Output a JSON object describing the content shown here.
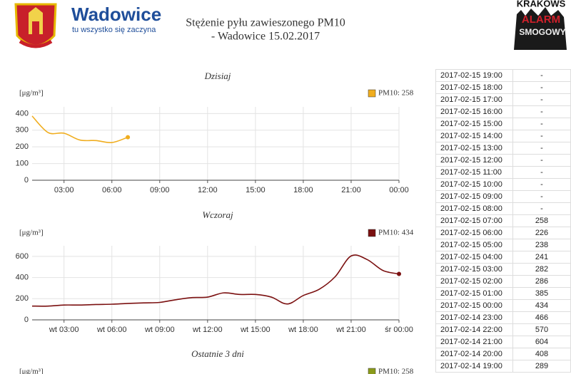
{
  "header": {
    "brand": "Wadowice",
    "tagline": "tu wszystko się zaczyna",
    "title_line1": "Stężenie pyłu zawieszonego PM10",
    "title_line2": "- Wadowice 15.02.2017",
    "logo_right": [
      "KRAKOWS",
      "ALARM",
      "SMOGOWY"
    ]
  },
  "chart_data": [
    {
      "type": "line",
      "title": "Dzisiaj",
      "y_label": "[μg/m³]",
      "x": [
        1,
        2,
        3,
        4,
        5,
        6,
        7
      ],
      "series": [
        {
          "name": "PM10: 258",
          "color": "#f0ad1e",
          "values": [
            385,
            286,
            282,
            241,
            238,
            226,
            258
          ]
        }
      ],
      "xlim": [
        1,
        24
      ],
      "xticks": [
        {
          "value": 3,
          "label": "03:00"
        },
        {
          "value": 6,
          "label": "06:00"
        },
        {
          "value": 9,
          "label": "09:00"
        },
        {
          "value": 12,
          "label": "12:00"
        },
        {
          "value": 15,
          "label": "15:00"
        },
        {
          "value": 18,
          "label": "18:00"
        },
        {
          "value": 21,
          "label": "21:00"
        },
        {
          "value": 24,
          "label": "00:00"
        }
      ],
      "ylim": [
        0,
        440
      ],
      "yticks": [
        0,
        100,
        200,
        300,
        400
      ],
      "grid": true
    },
    {
      "type": "line",
      "title": "Wczoraj",
      "y_label": "[μg/m³]",
      "x": [
        1,
        2,
        3,
        4,
        5,
        6,
        7,
        8,
        9,
        10,
        11,
        12,
        13,
        14,
        15,
        16,
        17,
        18,
        19,
        20,
        21,
        22,
        23,
        24
      ],
      "series": [
        {
          "name": "PM10: 434",
          "color": "#7b1010",
          "values": [
            130,
            130,
            140,
            140,
            145,
            148,
            155,
            160,
            165,
            190,
            210,
            215,
            255,
            240,
            240,
            215,
            150,
            230,
            289,
            408,
            604,
            570,
            466,
            434
          ]
        }
      ],
      "xlim": [
        1,
        24
      ],
      "xticks": [
        {
          "value": 3,
          "label": "wt 03:00"
        },
        {
          "value": 6,
          "label": "wt 06:00"
        },
        {
          "value": 9,
          "label": "wt 09:00"
        },
        {
          "value": 12,
          "label": "wt 12:00"
        },
        {
          "value": 15,
          "label": "wt 15:00"
        },
        {
          "value": 18,
          "label": "wt 18:00"
        },
        {
          "value": 21,
          "label": "wt 21:00"
        },
        {
          "value": 24,
          "label": "śr 00:00"
        }
      ],
      "ylim": [
        0,
        700
      ],
      "yticks": [
        0,
        200,
        400,
        600
      ],
      "grid": true
    }
  ],
  "partial_chart": {
    "title": "Ostatnie 3 dni",
    "y_label": "[μg/m³]",
    "legend": "PM10: 258",
    "color": "#8a9a1a"
  },
  "table": {
    "rows": [
      [
        "2017-02-15 19:00",
        "-"
      ],
      [
        "2017-02-15 18:00",
        "-"
      ],
      [
        "2017-02-15 17:00",
        "-"
      ],
      [
        "2017-02-15 16:00",
        "-"
      ],
      [
        "2017-02-15 15:00",
        "-"
      ],
      [
        "2017-02-15 14:00",
        "-"
      ],
      [
        "2017-02-15 13:00",
        "-"
      ],
      [
        "2017-02-15 12:00",
        "-"
      ],
      [
        "2017-02-15 11:00",
        "-"
      ],
      [
        "2017-02-15 10:00",
        "-"
      ],
      [
        "2017-02-15 09:00",
        "-"
      ],
      [
        "2017-02-15 08:00",
        "-"
      ],
      [
        "2017-02-15 07:00",
        258
      ],
      [
        "2017-02-15 06:00",
        226
      ],
      [
        "2017-02-15 05:00",
        238
      ],
      [
        "2017-02-15 04:00",
        241
      ],
      [
        "2017-02-15 03:00",
        282
      ],
      [
        "2017-02-15 02:00",
        286
      ],
      [
        "2017-02-15 01:00",
        385
      ],
      [
        "2017-02-15 00:00",
        434
      ],
      [
        "2017-02-14 23:00",
        466
      ],
      [
        "2017-02-14 22:00",
        570
      ],
      [
        "2017-02-14 21:00",
        604
      ],
      [
        "2017-02-14 20:00",
        408
      ],
      [
        "2017-02-14 19:00",
        289
      ]
    ]
  }
}
